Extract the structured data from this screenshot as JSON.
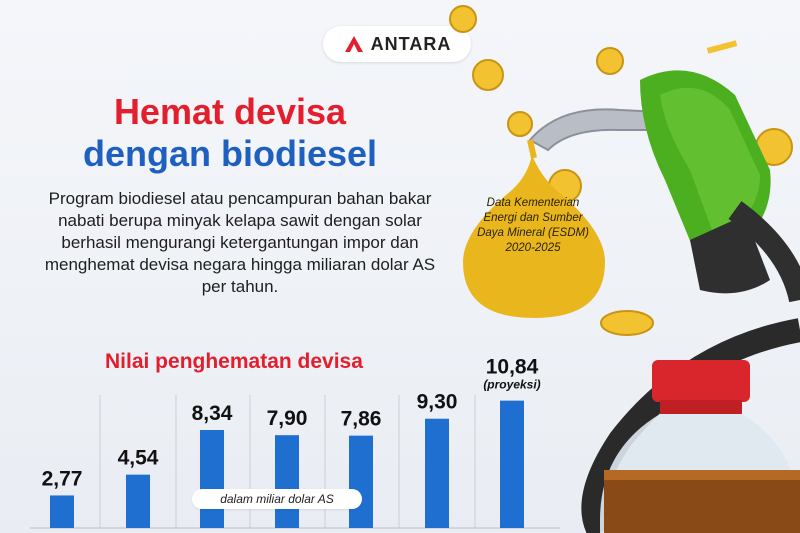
{
  "brand": {
    "logo_text": "ANTARA"
  },
  "headline": {
    "line1": "Hemat devisa",
    "line2": "dengan biodiesel"
  },
  "description": "Program biodiesel atau pencampuran bahan bakar nabati berupa minyak kelapa sawit dengan solar berhasil mengurangi ketergantungan impor dan menghemat devisa negara hingga miliaran dolar AS per tahun.",
  "source_note": "Data Kementerian Energi dan Sumber Daya Mineral (ESDM) 2020-2025",
  "colors": {
    "title_red": "#e31e2d",
    "title_blue": "#1f5fbf",
    "bar": "#1f6fd1",
    "drop": "#e9b61e",
    "nozzle": "#4caf1f"
  },
  "chart_data": {
    "type": "bar",
    "title": "Nilai penghematan devisa",
    "unit_label": "dalam miliar dolar AS",
    "values": [
      2.77,
      4.54,
      8.34,
      7.9,
      7.86,
      9.3,
      10.84
    ],
    "value_labels": [
      "2,77",
      "4,54",
      "8,34",
      "7,90",
      "7,86",
      "9,30",
      "10,84"
    ],
    "annotations": [
      "",
      "",
      "",
      "",
      "",
      "",
      "(proyeksi)"
    ],
    "grid": true,
    "legend": "none"
  }
}
